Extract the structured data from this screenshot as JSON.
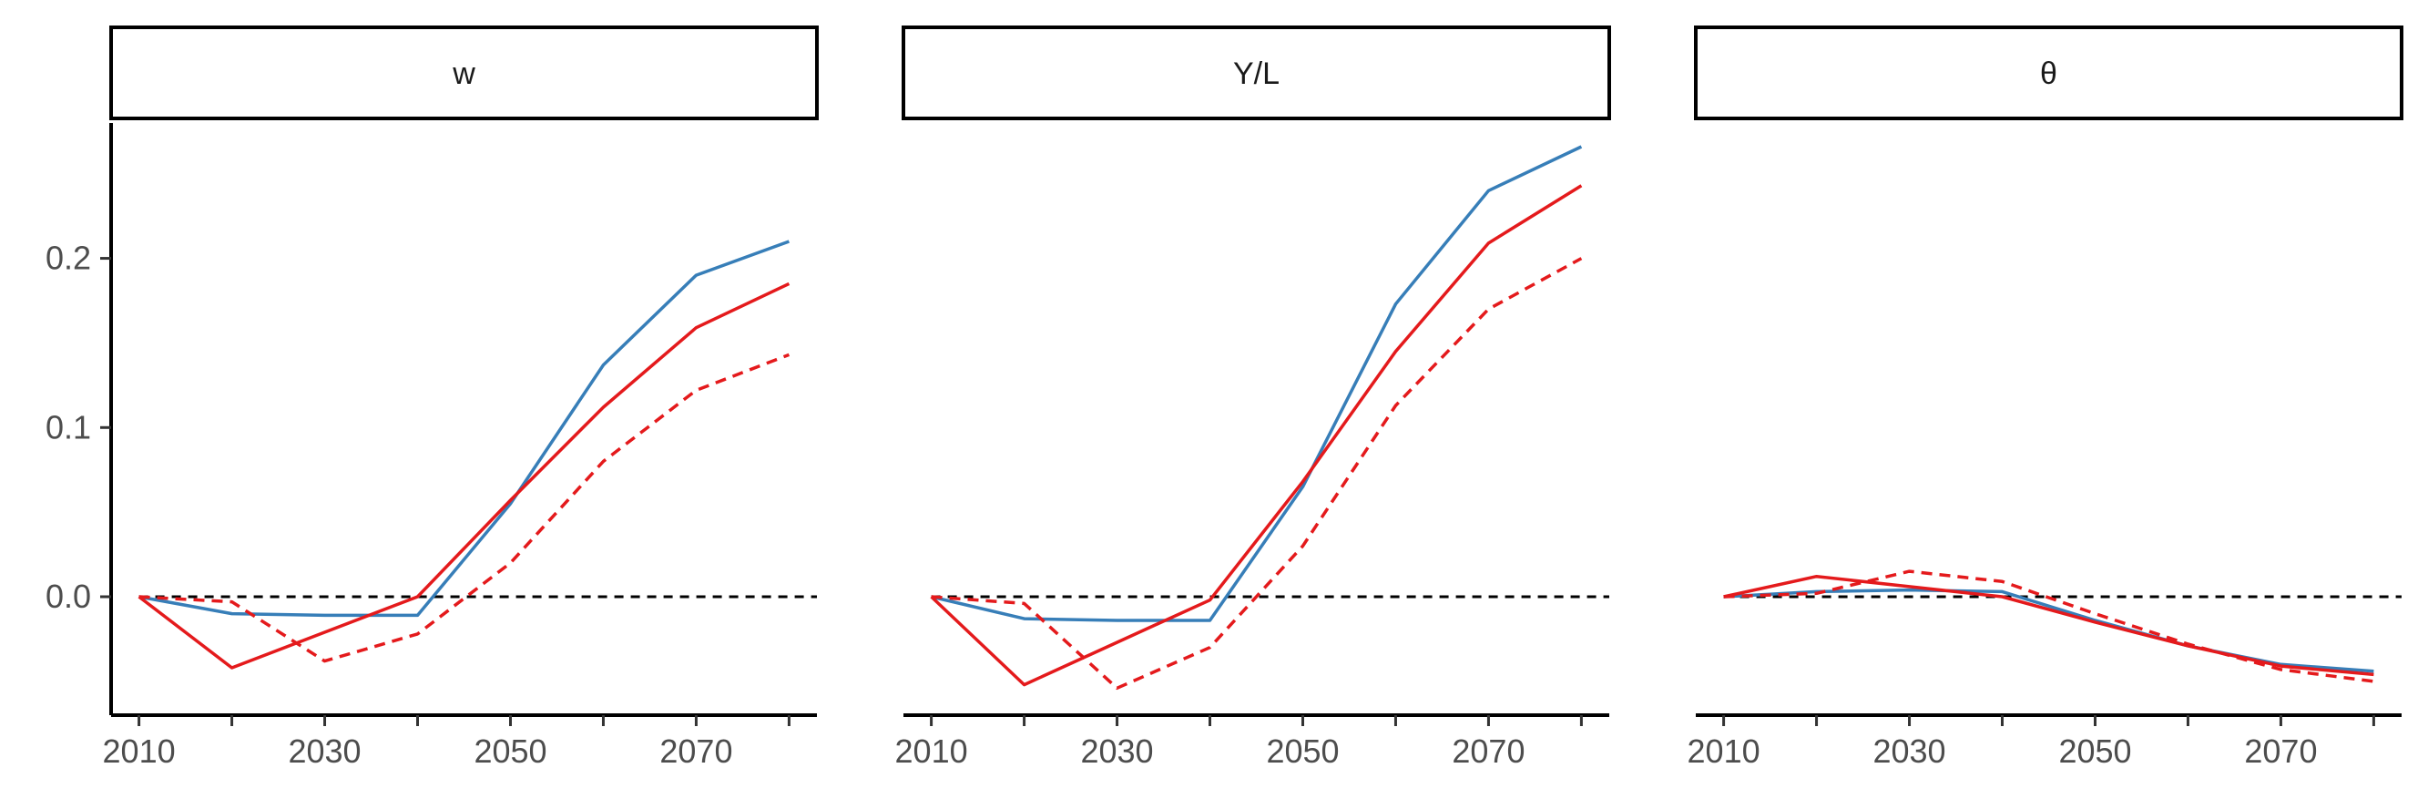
{
  "chart_data": {
    "type": "line",
    "facets": [
      "w",
      "Y/L",
      "θ"
    ],
    "x": [
      2010,
      2020,
      2030,
      2040,
      2050,
      2060,
      2070,
      2080
    ],
    "x_ticks": [
      "2010",
      "2030",
      "2050",
      "2070"
    ],
    "y_ticks": [
      "0.0",
      "0.1",
      "0.2"
    ],
    "ylim": [
      -0.07,
      0.28
    ],
    "xlim": [
      2007,
      2083
    ],
    "reference_line": 0,
    "colors": {
      "blue": "#377eb8",
      "red": "#e41a1c",
      "reference": "#000000"
    },
    "panels": [
      {
        "facet": "w",
        "series": [
          {
            "color": "#377eb8",
            "dash": "solid",
            "values": [
              0.0,
              -0.01,
              -0.011,
              -0.011,
              0.055,
              0.137,
              0.19,
              0.21
            ]
          },
          {
            "color": "#e41a1c",
            "dash": "solid",
            "values": [
              0.0,
              -0.042,
              -0.021,
              0.0,
              0.057,
              0.112,
              0.159,
              0.185
            ]
          },
          {
            "color": "#e41a1c",
            "dash": "dashed",
            "values": [
              0.0,
              -0.003,
              -0.038,
              -0.022,
              0.02,
              0.08,
              0.122,
              0.143
            ]
          }
        ]
      },
      {
        "facet": "Y/L",
        "series": [
          {
            "color": "#377eb8",
            "dash": "solid",
            "values": [
              0.0,
              -0.013,
              -0.014,
              -0.014,
              0.065,
              0.173,
              0.24,
              0.266
            ]
          },
          {
            "color": "#e41a1c",
            "dash": "solid",
            "values": [
              0.0,
              -0.052,
              -0.027,
              -0.002,
              0.068,
              0.145,
              0.209,
              0.243
            ]
          },
          {
            "color": "#e41a1c",
            "dash": "dashed",
            "values": [
              0.0,
              -0.004,
              -0.054,
              -0.03,
              0.03,
              0.113,
              0.17,
              0.2
            ]
          }
        ]
      },
      {
        "facet": "θ",
        "series": [
          {
            "color": "#377eb8",
            "dash": "solid",
            "values": [
              0.0,
              0.003,
              0.004,
              0.003,
              -0.014,
              -0.029,
              -0.04,
              -0.044
            ]
          },
          {
            "color": "#e41a1c",
            "dash": "solid",
            "values": [
              0.0,
              0.012,
              0.006,
              0.0,
              -0.015,
              -0.029,
              -0.041,
              -0.046
            ]
          },
          {
            "color": "#e41a1c",
            "dash": "dashed",
            "values": [
              0.0,
              0.002,
              0.015,
              0.009,
              -0.01,
              -0.028,
              -0.043,
              -0.05
            ]
          }
        ]
      }
    ]
  }
}
